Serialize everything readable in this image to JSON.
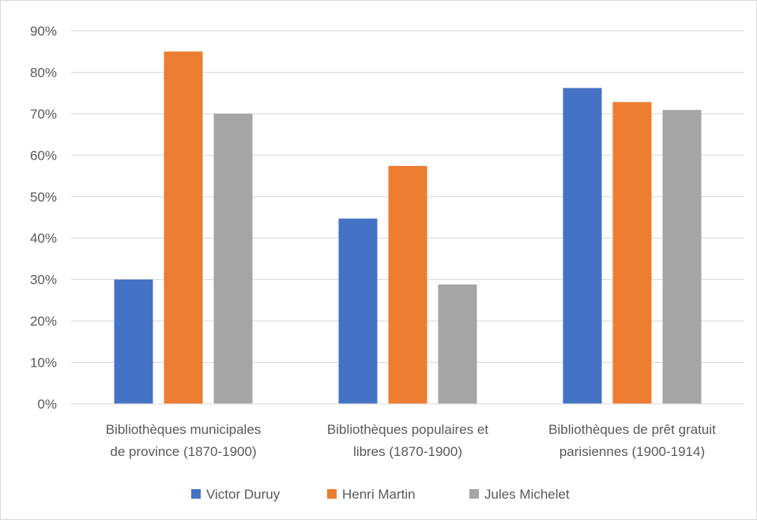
{
  "chart_data": {
    "type": "bar",
    "title": "",
    "xlabel": "",
    "ylabel": "",
    "ylim": [
      0,
      0.9
    ],
    "y_ticks": [
      {
        "value": 0,
        "label": "0%"
      },
      {
        "value": 0.1,
        "label": "10%"
      },
      {
        "value": 0.2,
        "label": "20%"
      },
      {
        "value": 0.3,
        "label": "30%"
      },
      {
        "value": 0.4,
        "label": "40%"
      },
      {
        "value": 0.5,
        "label": "50%"
      },
      {
        "value": 0.6,
        "label": "60%"
      },
      {
        "value": 0.7,
        "label": "70%"
      },
      {
        "value": 0.8,
        "label": "80%"
      },
      {
        "value": 0.9,
        "label": "90%"
      }
    ],
    "categories": [
      [
        "Bibliothèques municipales",
        "de province (1870-1900)"
      ],
      [
        "Bibliothèques populaires et",
        "libres (1870-1900)"
      ],
      [
        "Bibliothèques de prêt gratuit",
        "parisiennes (1900-1914)"
      ]
    ],
    "series": [
      {
        "name": "Victor Duruy",
        "color": "#4472c4",
        "values": [
          0.3,
          0.447,
          0.762
        ]
      },
      {
        "name": "Henri Martin",
        "color": "#ed7d31",
        "values": [
          0.85,
          0.574,
          0.728
        ]
      },
      {
        "name": "Jules Michelet",
        "color": "#a5a5a5",
        "values": [
          0.7,
          0.288,
          0.709
        ]
      }
    ],
    "grid": true,
    "legend_position": "bottom"
  }
}
